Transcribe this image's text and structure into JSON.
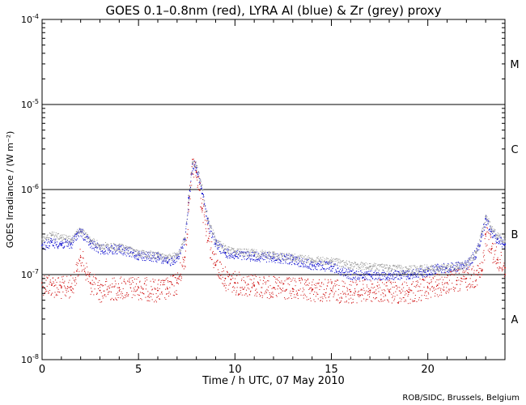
{
  "chart_data": {
    "type": "scatter",
    "title": "GOES 0.1–0.8nm (red), LYRA Al (blue) & Zr (grey) proxy",
    "xlabel": "Time / h UTC, 07 May 2010",
    "ylabel": "GOES Irradiance / (W m⁻²)",
    "xlim": [
      0,
      24
    ],
    "ylim": [
      1e-08,
      0.0001
    ],
    "yscale": "log",
    "x_ticks": [
      0,
      5,
      10,
      15,
      20
    ],
    "x_tick_labels": [
      "0",
      "5",
      "10",
      "15",
      "20"
    ],
    "y_ticks": [
      1e-08,
      1e-07,
      1e-06,
      1e-05,
      0.0001
    ],
    "y_tick_labels": [
      {
        "base": "10",
        "exp": "-8"
      },
      {
        "base": "10",
        "exp": "-7"
      },
      {
        "base": "10",
        "exp": "-6"
      },
      {
        "base": "10",
        "exp": "-5"
      },
      {
        "base": "10",
        "exp": "-4"
      }
    ],
    "flare_class_lines": [
      1e-07,
      1e-06,
      1e-05
    ],
    "flare_class_labels": [
      {
        "label": "A",
        "level": 3e-08
      },
      {
        "label": "B",
        "level": 3e-07
      },
      {
        "label": "C",
        "level": 3e-06
      },
      {
        "label": "M",
        "level": 3e-05
      }
    ],
    "series": [
      {
        "name": "GOES 0.1-0.8nm",
        "color": "#cc0000",
        "x": [
          0,
          0.5,
          1,
          1.5,
          1.8,
          2.0,
          2.5,
          3,
          4,
          5,
          6,
          6.5,
          7.0,
          7.4,
          7.6,
          7.8,
          8.0,
          8.3,
          8.6,
          9,
          9.5,
          10,
          11,
          12,
          13,
          14,
          15,
          16,
          17,
          18,
          19,
          20,
          20.5,
          21,
          21.5,
          22,
          22.5,
          22.8,
          23.0,
          23.3,
          23.6,
          24
        ],
        "values": [
          8e-08,
          7.5e-08,
          7e-08,
          7.2e-08,
          1.1e-07,
          1.6e-07,
          8e-08,
          6.5e-08,
          7e-08,
          7e-08,
          6.5e-08,
          6.8e-08,
          8e-08,
          1.6e-07,
          7e-07,
          2e-06,
          1.6e-06,
          6e-07,
          2.5e-07,
          1.3e-07,
          9e-08,
          8e-08,
          7.5e-08,
          7e-08,
          6.8e-08,
          6.6e-08,
          6.5e-08,
          6.3e-08,
          6.5e-08,
          6.3e-08,
          6.2e-08,
          7e-08,
          7.5e-08,
          8e-08,
          8.5e-08,
          9e-08,
          1e-07,
          1.1e-07,
          3e-07,
          2e-07,
          1.5e-07,
          1.2e-07
        ]
      },
      {
        "name": "LYRA Al proxy",
        "color": "#0000cc",
        "x": [
          0,
          0.5,
          1,
          1.5,
          1.8,
          2.0,
          2.5,
          3,
          4,
          5,
          6,
          6.5,
          7.0,
          7.4,
          7.6,
          7.8,
          8.0,
          8.3,
          8.6,
          9,
          9.5,
          10,
          11,
          12,
          13,
          14,
          15,
          16,
          17,
          18,
          19,
          20,
          20.5,
          21,
          21.5,
          22,
          22.5,
          22.8,
          23.0,
          23.3,
          23.6,
          24
        ],
        "values": [
          2.2e-07,
          2.4e-07,
          2.3e-07,
          2.3e-07,
          3e-07,
          3.2e-07,
          2.3e-07,
          2e-07,
          2e-07,
          1.7e-07,
          1.6e-07,
          1.4e-07,
          1.6e-07,
          2.6e-07,
          8e-07,
          2e-06,
          1.8e-06,
          9e-07,
          4e-07,
          2.3e-07,
          1.8e-07,
          1.7e-07,
          1.65e-07,
          1.6e-07,
          1.5e-07,
          1.3e-07,
          1.25e-07,
          1e-07,
          1e-07,
          1e-07,
          1e-07,
          1.1e-07,
          1.2e-07,
          1.2e-07,
          1.25e-07,
          1.3e-07,
          1.8e-07,
          3e-07,
          4.5e-07,
          3.2e-07,
          2.6e-07,
          2.3e-07
        ]
      },
      {
        "name": "LYRA Zr proxy",
        "color": "#999999",
        "x": [
          0,
          0.5,
          1,
          1.5,
          1.8,
          2.0,
          2.5,
          3,
          4,
          5,
          6,
          6.5,
          7.0,
          7.4,
          7.6,
          7.8,
          8.0,
          8.3,
          8.6,
          9,
          9.5,
          10,
          11,
          12,
          13,
          14,
          15,
          16,
          17,
          18,
          19,
          20,
          20.5,
          21,
          21.5,
          22,
          22.5,
          22.8,
          23.0,
          23.3,
          23.6,
          24
        ],
        "values": [
          2.6e-07,
          2.9e-07,
          2.7e-07,
          2.6e-07,
          3.2e-07,
          3.3e-07,
          2.5e-07,
          2.2e-07,
          2.1e-07,
          1.8e-07,
          1.7e-07,
          1.55e-07,
          1.7e-07,
          2.7e-07,
          8.5e-07,
          2.1e-06,
          1.9e-06,
          1e-06,
          4.3e-07,
          2.5e-07,
          2e-07,
          1.9e-07,
          1.8e-07,
          1.7e-07,
          1.6e-07,
          1.5e-07,
          1.45e-07,
          1.3e-07,
          1.25e-07,
          1.2e-07,
          1.15e-07,
          1.2e-07,
          1.2e-07,
          1.2e-07,
          1.25e-07,
          1.3e-07,
          1.8e-07,
          3.2e-07,
          4.8e-07,
          3.5e-07,
          2.9e-07,
          2.5e-07
        ]
      }
    ]
  },
  "footer": {
    "credit": "ROB/SIDC, Brussels, Belgium"
  }
}
